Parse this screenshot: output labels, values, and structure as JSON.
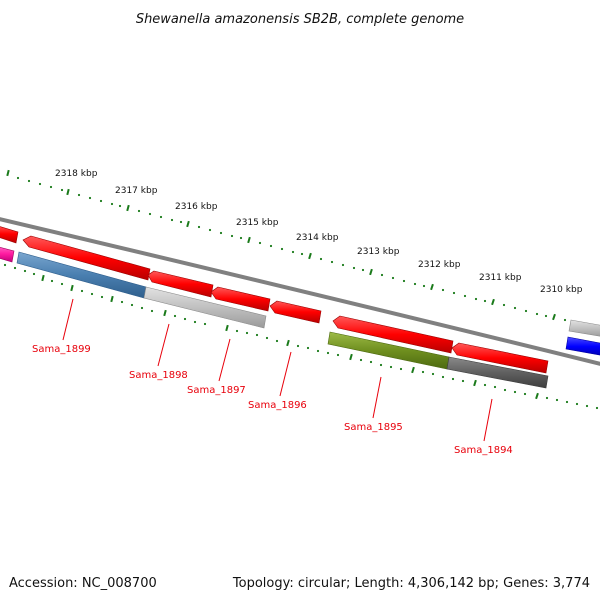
{
  "title": "Shewanella amazonensis SB2B, complete genome",
  "footer": {
    "accession": "Accession: NC_008700",
    "summary": "Topology: circular; Length: 4,306,142 bp; Genes: 3,774"
  },
  "colors": {
    "cds_forward": "#ff0000",
    "backbone": "#808080",
    "tick": "#1a7a1a",
    "label": "#e8000b",
    "cog_blue": "#4a7fb0",
    "cog_light_gray": "#c0c0c0",
    "cog_olive": "#6f8f1f",
    "cog_dark_gray": "#606060",
    "cog_bright_blue": "#0000ff",
    "cog_magenta": "#ff1aa0"
  },
  "scale_labels": [
    "2318 kbp",
    "2317 kbp",
    "2316 kbp",
    "2315 kbp",
    "2314 kbp",
    "2313 kbp",
    "2312 kbp",
    "2311 kbp",
    "2310 kbp"
  ],
  "genes": [
    {
      "name": "Sama_1899",
      "category_color": "cog_blue"
    },
    {
      "name": "Sama_1898",
      "category_color": "cog_light_gray"
    },
    {
      "name": "Sama_1897",
      "category_color": "cog_light_gray"
    },
    {
      "name": "Sama_1896",
      "category_color": "none"
    },
    {
      "name": "Sama_1895",
      "category_color": "cog_olive"
    },
    {
      "name": "Sama_1894",
      "category_color": "cog_dark_gray"
    }
  ]
}
